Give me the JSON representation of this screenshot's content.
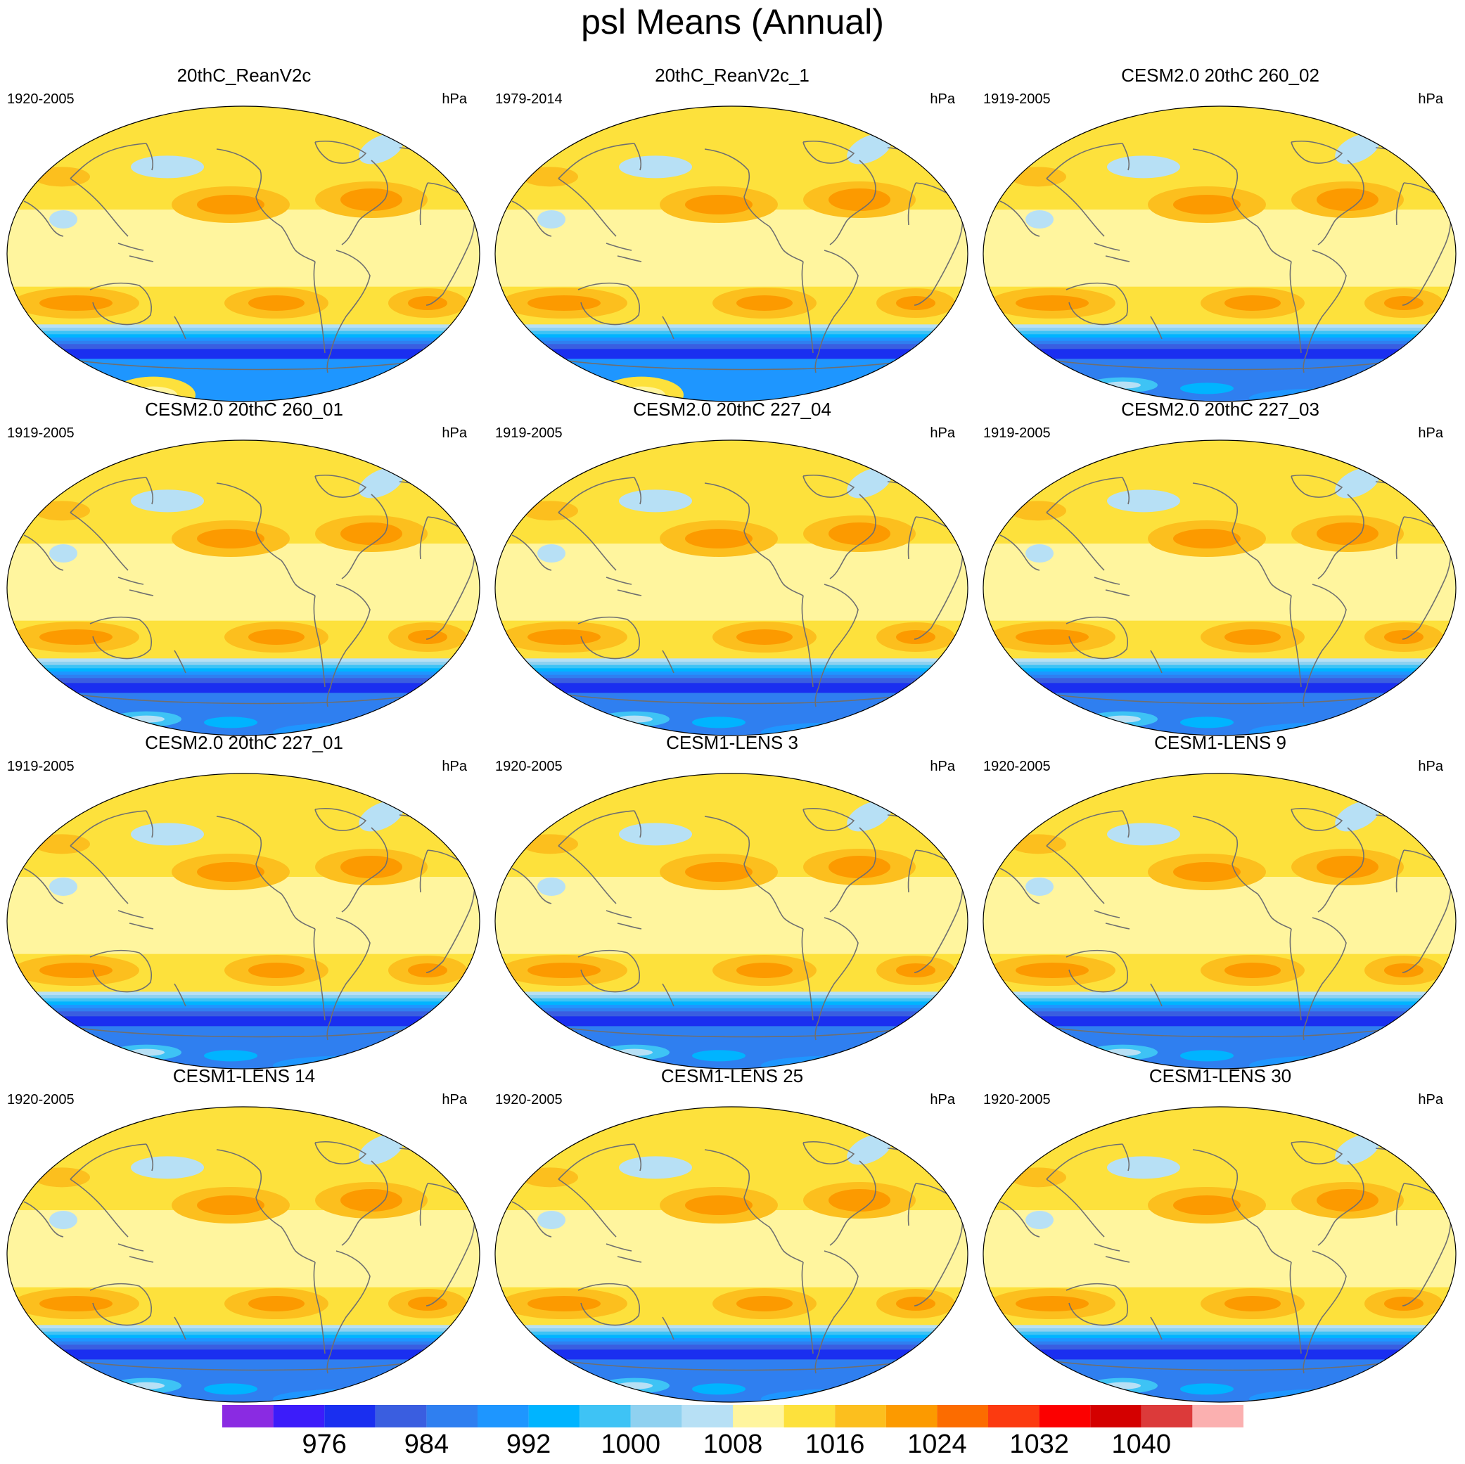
{
  "title": "psl Means (Annual)",
  "units": "hPa",
  "panels": [
    {
      "title": "20thC_ReanV2c",
      "period": "1920-2005",
      "antarctic_high": true
    },
    {
      "title": "20thC_ReanV2c_1",
      "period": "1979-2014",
      "antarctic_high": true
    },
    {
      "title": "CESM2.0 20thC 260_02",
      "period": "1919-2005",
      "antarctic_high": false
    },
    {
      "title": "CESM2.0 20thC 260_01",
      "period": "1919-2005",
      "antarctic_high": false
    },
    {
      "title": "CESM2.0 20thC 227_04",
      "period": "1919-2005",
      "antarctic_high": false
    },
    {
      "title": "CESM2.0 20thC 227_03",
      "period": "1919-2005",
      "antarctic_high": false
    },
    {
      "title": "CESM2.0 20thC 227_01",
      "period": "1919-2005",
      "antarctic_high": false
    },
    {
      "title": "CESM1-LENS 3",
      "period": "1920-2005",
      "antarctic_high": false
    },
    {
      "title": "CESM1-LENS 9",
      "period": "1920-2005",
      "antarctic_high": false
    },
    {
      "title": "CESM1-LENS 14",
      "period": "1920-2005",
      "antarctic_high": false
    },
    {
      "title": "CESM1-LENS 25",
      "period": "1920-2005",
      "antarctic_high": false
    },
    {
      "title": "CESM1-LENS 30",
      "period": "1920-2005",
      "antarctic_high": false
    }
  ],
  "colorbar": {
    "colors": [
      "#8a2be2",
      "#3c1cfa",
      "#1a2ff0",
      "#3a5ee0",
      "#2f7ff0",
      "#1e96ff",
      "#00b4ff",
      "#3ec3f5",
      "#8fd1f0",
      "#b7e0f5",
      "#fff59e",
      "#fde13c",
      "#fcbf1e",
      "#fc9a00",
      "#fc6c00",
      "#fc3a10",
      "#fc0000",
      "#d40000",
      "#dc3a3a",
      "#fbb0b0"
    ],
    "labels": [
      "976",
      "984",
      "992",
      "1000",
      "1008",
      "1016",
      "1024",
      "1032",
      "1040"
    ]
  }
}
